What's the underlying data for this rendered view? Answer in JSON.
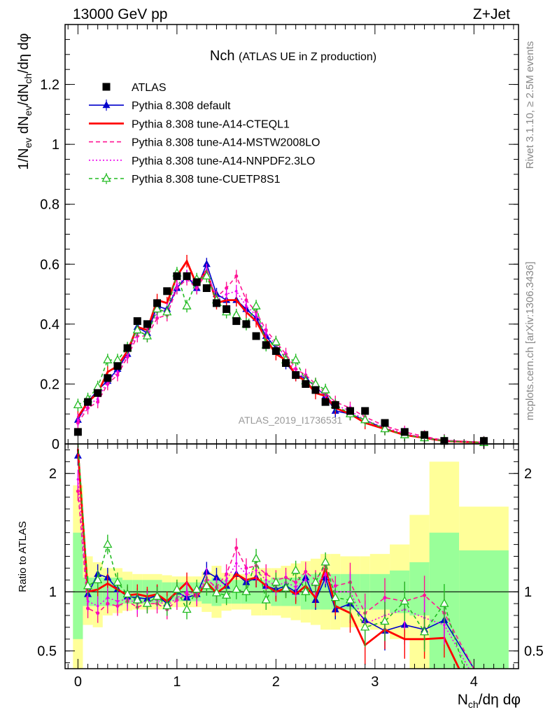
{
  "header": {
    "energy_label": "13000 GeV pp",
    "process_label": "Z+Jet",
    "plot_title": "Nch",
    "plot_subtitle": "(ATLAS UE in Z production)",
    "side_label_top": "Rivet 3.1.10, ≥ 2.5M events",
    "side_label_bottom": "mcplots.cern.ch [arXiv:1306.3436]",
    "analysis_watermark": "ATLAS_2019_I1736531"
  },
  "chart_data": [
    {
      "type": "line",
      "panel": "main",
      "ylabel": "1/N_ev dN_ev/dN_ch/dη dφ",
      "xlabel": "N_ch/dη dφ",
      "xlim": [
        -0.13,
        4.45
      ],
      "ylim": [
        0,
        1.4
      ],
      "y_ticks": [
        0,
        0.2,
        0.4,
        0.6,
        0.8,
        1,
        1.2
      ],
      "y_tick_labels": [
        "0",
        "0.2",
        "0.4",
        "0.6",
        "0.8",
        "1",
        "1.2"
      ],
      "x_ticks": [
        0,
        1,
        2,
        3,
        4
      ],
      "x_tick_labels": [
        "0",
        "1",
        "2",
        "3",
        "4"
      ],
      "legend_position": "top-left",
      "series": [
        {
          "name": "ATLAS",
          "color": "#000000",
          "style": "square",
          "x": [
            0.0,
            0.1,
            0.2,
            0.3,
            0.4,
            0.5,
            0.6,
            0.7,
            0.8,
            0.9,
            1.0,
            1.1,
            1.2,
            1.3,
            1.4,
            1.5,
            1.6,
            1.7,
            1.8,
            1.9,
            2.0,
            2.1,
            2.2,
            2.3,
            2.4,
            2.5,
            2.6,
            2.75,
            2.9,
            3.1,
            3.3,
            3.5,
            3.7,
            4.1
          ],
          "y": [
            0.04,
            0.14,
            0.17,
            0.22,
            0.26,
            0.32,
            0.41,
            0.4,
            0.47,
            0.51,
            0.56,
            0.56,
            0.54,
            0.52,
            0.47,
            0.45,
            0.41,
            0.4,
            0.36,
            0.33,
            0.31,
            0.27,
            0.23,
            0.2,
            0.18,
            0.14,
            0.13,
            0.11,
            0.11,
            0.07,
            0.04,
            0.03,
            0.01,
            0.01
          ]
        },
        {
          "name": "Pythia 8.308 default",
          "color": "#0000cc",
          "style": "solid-triangle",
          "x": [
            0.0,
            0.1,
            0.2,
            0.3,
            0.4,
            0.5,
            0.6,
            0.7,
            0.8,
            0.9,
            1.0,
            1.1,
            1.2,
            1.3,
            1.4,
            1.5,
            1.6,
            1.7,
            1.8,
            1.9,
            2.0,
            2.1,
            2.2,
            2.3,
            2.4,
            2.5,
            2.6,
            2.75,
            2.9,
            3.1,
            3.3,
            3.5,
            3.7,
            4.1
          ],
          "y": [
            0.08,
            0.14,
            0.18,
            0.21,
            0.25,
            0.3,
            0.39,
            0.37,
            0.46,
            0.45,
            0.52,
            0.56,
            0.52,
            0.6,
            0.5,
            0.48,
            0.48,
            0.45,
            0.42,
            0.36,
            0.32,
            0.27,
            0.23,
            0.22,
            0.19,
            0.16,
            0.11,
            0.1,
            0.08,
            0.05,
            0.03,
            0.02,
            0.01,
            0.005
          ]
        },
        {
          "name": "Pythia 8.308 tune-A14-CTEQL1",
          "color": "#ff0000",
          "style": "solid-thick",
          "x": [
            0.0,
            0.1,
            0.2,
            0.3,
            0.4,
            0.5,
            0.6,
            0.7,
            0.8,
            0.9,
            1.0,
            1.1,
            1.2,
            1.3,
            1.4,
            1.5,
            1.6,
            1.7,
            1.8,
            1.9,
            2.0,
            2.1,
            2.2,
            2.3,
            2.4,
            2.5,
            2.6,
            2.75,
            2.9,
            3.1,
            3.3,
            3.5,
            3.7,
            4.1
          ],
          "y": [
            0.09,
            0.14,
            0.17,
            0.24,
            0.26,
            0.31,
            0.39,
            0.38,
            0.48,
            0.47,
            0.56,
            0.61,
            0.53,
            0.58,
            0.47,
            0.48,
            0.48,
            0.44,
            0.41,
            0.35,
            0.3,
            0.28,
            0.23,
            0.21,
            0.17,
            0.16,
            0.12,
            0.1,
            0.07,
            0.05,
            0.03,
            0.02,
            0.01,
            0.004
          ]
        },
        {
          "name": "Pythia 8.308 tune-A14-MSTW2008LO",
          "color": "#ff1493",
          "style": "dashed",
          "x": [
            0.0,
            0.1,
            0.2,
            0.3,
            0.4,
            0.5,
            0.6,
            0.7,
            0.8,
            0.9,
            1.0,
            1.1,
            1.2,
            1.3,
            1.4,
            1.5,
            1.6,
            1.7,
            1.8,
            1.9,
            2.0,
            2.1,
            2.2,
            2.3,
            2.4,
            2.5,
            2.6,
            2.75,
            2.9,
            3.1,
            3.3,
            3.5,
            3.7,
            4.1
          ],
          "y": [
            0.07,
            0.12,
            0.14,
            0.2,
            0.23,
            0.29,
            0.36,
            0.36,
            0.42,
            0.43,
            0.52,
            0.55,
            0.52,
            0.57,
            0.49,
            0.52,
            0.56,
            0.48,
            0.44,
            0.38,
            0.34,
            0.3,
            0.25,
            0.23,
            0.2,
            0.17,
            0.14,
            0.12,
            0.09,
            0.06,
            0.04,
            0.025,
            0.012,
            0.005
          ]
        },
        {
          "name": "Pythia 8.308 tune-A14-NNPDF2.3LO",
          "color": "#ee00ee",
          "style": "dotted",
          "x": [
            0.0,
            0.1,
            0.2,
            0.3,
            0.4,
            0.5,
            0.6,
            0.7,
            0.8,
            0.9,
            1.0,
            1.1,
            1.2,
            1.3,
            1.4,
            1.5,
            1.6,
            1.7,
            1.8,
            1.9,
            2.0,
            2.1,
            2.2,
            2.3,
            2.4,
            2.5,
            2.6,
            2.75,
            2.9,
            3.1,
            3.3,
            3.5,
            3.7,
            4.1
          ],
          "y": [
            0.08,
            0.13,
            0.15,
            0.21,
            0.24,
            0.3,
            0.37,
            0.37,
            0.44,
            0.45,
            0.53,
            0.56,
            0.53,
            0.58,
            0.48,
            0.5,
            0.51,
            0.46,
            0.43,
            0.37,
            0.33,
            0.29,
            0.24,
            0.22,
            0.19,
            0.16,
            0.13,
            0.11,
            0.08,
            0.055,
            0.035,
            0.02,
            0.011,
            0.004
          ]
        },
        {
          "name": "Pythia 8.308 tune-CUETP8S1",
          "color": "#22bb22",
          "style": "dashed-open-triangle",
          "x": [
            0.0,
            0.1,
            0.2,
            0.3,
            0.4,
            0.5,
            0.6,
            0.7,
            0.8,
            0.9,
            1.0,
            1.1,
            1.2,
            1.3,
            1.4,
            1.5,
            1.6,
            1.7,
            1.8,
            1.9,
            2.0,
            2.1,
            2.2,
            2.3,
            2.4,
            2.5,
            2.6,
            2.75,
            2.9,
            3.1,
            3.3,
            3.5,
            3.7,
            4.1
          ],
          "y": [
            0.13,
            0.15,
            0.19,
            0.28,
            0.28,
            0.32,
            0.38,
            0.36,
            0.45,
            0.44,
            0.57,
            0.46,
            0.55,
            0.56,
            0.48,
            0.44,
            0.43,
            0.4,
            0.46,
            0.33,
            0.34,
            0.28,
            0.28,
            0.21,
            0.2,
            0.18,
            0.13,
            0.1,
            0.08,
            0.05,
            0.03,
            0.02,
            0.01,
            0.004
          ]
        }
      ]
    },
    {
      "type": "line",
      "panel": "ratio",
      "ylabel": "Ratio to ATLAS",
      "ylim": [
        0.35,
        2.25
      ],
      "y_ticks": [
        0.5,
        1,
        2
      ],
      "y_tick_labels": [
        "0.5",
        "1",
        "2"
      ],
      "reference_line": 1,
      "bands": {
        "x_edges": [
          -0.05,
          0.05,
          0.15,
          0.25,
          0.35,
          0.45,
          0.55,
          0.65,
          0.75,
          0.85,
          0.95,
          1.05,
          1.15,
          1.25,
          1.35,
          1.45,
          1.55,
          1.65,
          1.75,
          1.85,
          1.95,
          2.05,
          2.15,
          2.25,
          2.35,
          2.45,
          2.55,
          2.65,
          2.85,
          2.95,
          3.15,
          3.35,
          3.55,
          3.85,
          4.35
        ],
        "green_lo": [
          0.6,
          0.88,
          0.88,
          0.88,
          0.88,
          0.9,
          0.9,
          0.9,
          0.9,
          0.92,
          0.92,
          0.92,
          0.92,
          0.9,
          0.88,
          0.9,
          0.9,
          0.9,
          0.9,
          0.9,
          0.88,
          0.88,
          0.88,
          0.85,
          0.85,
          0.85,
          0.85,
          0.85,
          0.85,
          0.85,
          0.82,
          0.8,
          0.35,
          0.35
        ],
        "green_hi": [
          1.5,
          1.12,
          1.12,
          1.12,
          1.12,
          1.1,
          1.1,
          1.1,
          1.1,
          1.08,
          1.08,
          1.08,
          1.08,
          1.1,
          1.12,
          1.1,
          1.1,
          1.1,
          1.1,
          1.1,
          1.12,
          1.12,
          1.12,
          1.15,
          1.15,
          1.15,
          1.15,
          1.15,
          1.15,
          1.15,
          1.18,
          1.25,
          1.5,
          1.35
        ],
        "yellow_lo": [
          0.35,
          0.72,
          0.7,
          0.8,
          0.82,
          0.84,
          0.85,
          0.85,
          0.85,
          0.86,
          0.87,
          0.87,
          0.87,
          0.83,
          0.78,
          0.84,
          0.85,
          0.85,
          0.8,
          0.8,
          0.8,
          0.78,
          0.76,
          0.74,
          0.72,
          0.68,
          0.68,
          0.7,
          0.7,
          0.68,
          0.6,
          0.35,
          0.35,
          0.48
        ],
        "yellow_hi": [
          1.9,
          1.3,
          1.25,
          1.2,
          1.2,
          1.17,
          1.15,
          1.15,
          1.15,
          1.14,
          1.13,
          1.13,
          1.13,
          1.17,
          1.22,
          1.16,
          1.15,
          1.15,
          1.2,
          1.2,
          1.2,
          1.22,
          1.24,
          1.26,
          1.28,
          1.32,
          1.32,
          1.3,
          1.3,
          1.32,
          1.4,
          1.65,
          2.1,
          1.72
        ]
      },
      "series": [
        {
          "name": "Pythia 8.308 default",
          "color": "#0000cc",
          "x": [
            0.0,
            0.1,
            0.2,
            0.3,
            0.4,
            0.5,
            0.6,
            0.7,
            0.8,
            0.9,
            1.0,
            1.1,
            1.2,
            1.3,
            1.4,
            1.5,
            1.6,
            1.7,
            1.8,
            1.9,
            2.0,
            2.1,
            2.2,
            2.3,
            2.4,
            2.5,
            2.6,
            2.75,
            2.9,
            3.1,
            3.3,
            3.5,
            3.7,
            4.0
          ],
          "y": [
            2.15,
            0.98,
            1.15,
            1.12,
            1.02,
            0.96,
            0.95,
            0.94,
            0.97,
            0.9,
            1.0,
            0.95,
            0.98,
            1.17,
            1.12,
            1.05,
            1.15,
            1.08,
            1.12,
            1.05,
            1.02,
            1.05,
            1.0,
            1.12,
            0.93,
            1.12,
            0.85,
            0.9,
            0.76,
            0.67,
            0.72,
            0.68,
            0.76,
            0.35
          ]
        },
        {
          "name": "Pythia 8.308 tune-A14-CTEQL1",
          "color": "#ff0000",
          "x": [
            0.0,
            0.1,
            0.2,
            0.3,
            0.4,
            0.5,
            0.6,
            0.7,
            0.8,
            0.9,
            1.0,
            1.1,
            1.2,
            1.3,
            1.4,
            1.5,
            1.6,
            1.7,
            1.8,
            1.9,
            2.0,
            2.1,
            2.2,
            2.3,
            2.4,
            2.5,
            2.6,
            2.75,
            2.9,
            3.1,
            3.3,
            3.5,
            3.7,
            3.85
          ],
          "y": [
            2.2,
            1.0,
            1.02,
            1.07,
            1.02,
            0.97,
            0.98,
            0.96,
            0.98,
            0.92,
            1.0,
            1.08,
            0.96,
            1.08,
            0.99,
            1.05,
            1.15,
            1.1,
            1.12,
            1.05,
            1.0,
            1.03,
            0.98,
            1.05,
            0.95,
            1.2,
            0.88,
            0.82,
            0.55,
            0.68,
            0.6,
            0.6,
            0.61,
            0.35
          ]
        },
        {
          "name": "Pythia 8.308 tune-A14-MSTW2008LO",
          "color": "#ff1493",
          "x": [
            0.0,
            0.1,
            0.2,
            0.3,
            0.4,
            0.5,
            0.6,
            0.7,
            0.8,
            0.9,
            1.0,
            1.1,
            1.2,
            1.3,
            1.4,
            1.5,
            1.6,
            1.7,
            1.8,
            1.9,
            2.0,
            2.1,
            2.2,
            2.3,
            2.4,
            2.5,
            2.6,
            2.75,
            2.9,
            3.1,
            3.3,
            3.5,
            3.7,
            4.0
          ],
          "y": [
            1.85,
            0.86,
            0.82,
            0.9,
            0.88,
            0.92,
            0.87,
            0.9,
            0.9,
            0.85,
            0.93,
            0.98,
            0.96,
            1.1,
            1.04,
            1.15,
            1.37,
            1.2,
            1.22,
            1.15,
            1.1,
            1.12,
            1.08,
            1.17,
            1.1,
            1.22,
            1.05,
            1.08,
            0.82,
            0.95,
            0.92,
            0.97,
            0.82,
            0.35
          ]
        },
        {
          "name": "Pythia 8.308 tune-A14-NNPDF2.3LO",
          "color": "#ee00ee",
          "x": [
            0.0,
            0.1,
            0.2,
            0.3,
            0.4,
            0.5,
            0.6,
            0.7,
            0.8,
            0.9,
            1.0,
            1.1,
            1.2,
            1.3,
            1.4,
            1.5,
            1.6,
            1.7,
            1.8,
            1.9,
            2.0,
            2.1,
            2.2,
            2.3,
            2.4,
            2.5,
            2.6,
            2.75,
            2.9,
            3.1,
            3.3,
            3.5,
            3.7,
            3.95
          ],
          "y": [
            1.95,
            0.92,
            0.88,
            0.95,
            0.92,
            0.94,
            0.9,
            0.92,
            0.93,
            0.88,
            0.95,
            1.0,
            0.98,
            1.12,
            1.02,
            1.1,
            1.24,
            1.15,
            1.18,
            1.1,
            1.05,
            1.08,
            1.04,
            1.1,
            1.05,
            1.15,
            1.0,
            1.0,
            0.73,
            0.8,
            0.85,
            0.78,
            0.72,
            0.35
          ]
        },
        {
          "name": "Pythia 8.308 tune-CUETP8S1",
          "color": "#22bb22",
          "x": [
            0.0,
            0.1,
            0.2,
            0.3,
            0.4,
            0.5,
            0.6,
            0.7,
            0.8,
            0.9,
            1.0,
            1.1,
            1.2,
            1.3,
            1.4,
            1.5,
            1.6,
            1.7,
            1.8,
            1.9,
            2.0,
            2.1,
            2.2,
            2.3,
            2.4,
            2.5,
            2.6,
            2.75,
            2.9,
            3.1,
            3.3,
            3.5,
            3.7,
            3.9
          ],
          "y": [
            2.3,
            1.05,
            1.1,
            1.4,
            1.08,
            0.98,
            0.93,
            0.9,
            0.96,
            0.88,
            1.02,
            0.85,
            1.02,
            1.05,
            0.99,
            0.97,
            1.02,
            1.0,
            1.28,
            0.93,
            1.08,
            1.03,
            1.18,
            1.0,
            1.08,
            1.25,
            0.95,
            0.93,
            0.7,
            0.75,
            0.92,
            0.66,
            0.9,
            0.35
          ]
        }
      ]
    }
  ]
}
